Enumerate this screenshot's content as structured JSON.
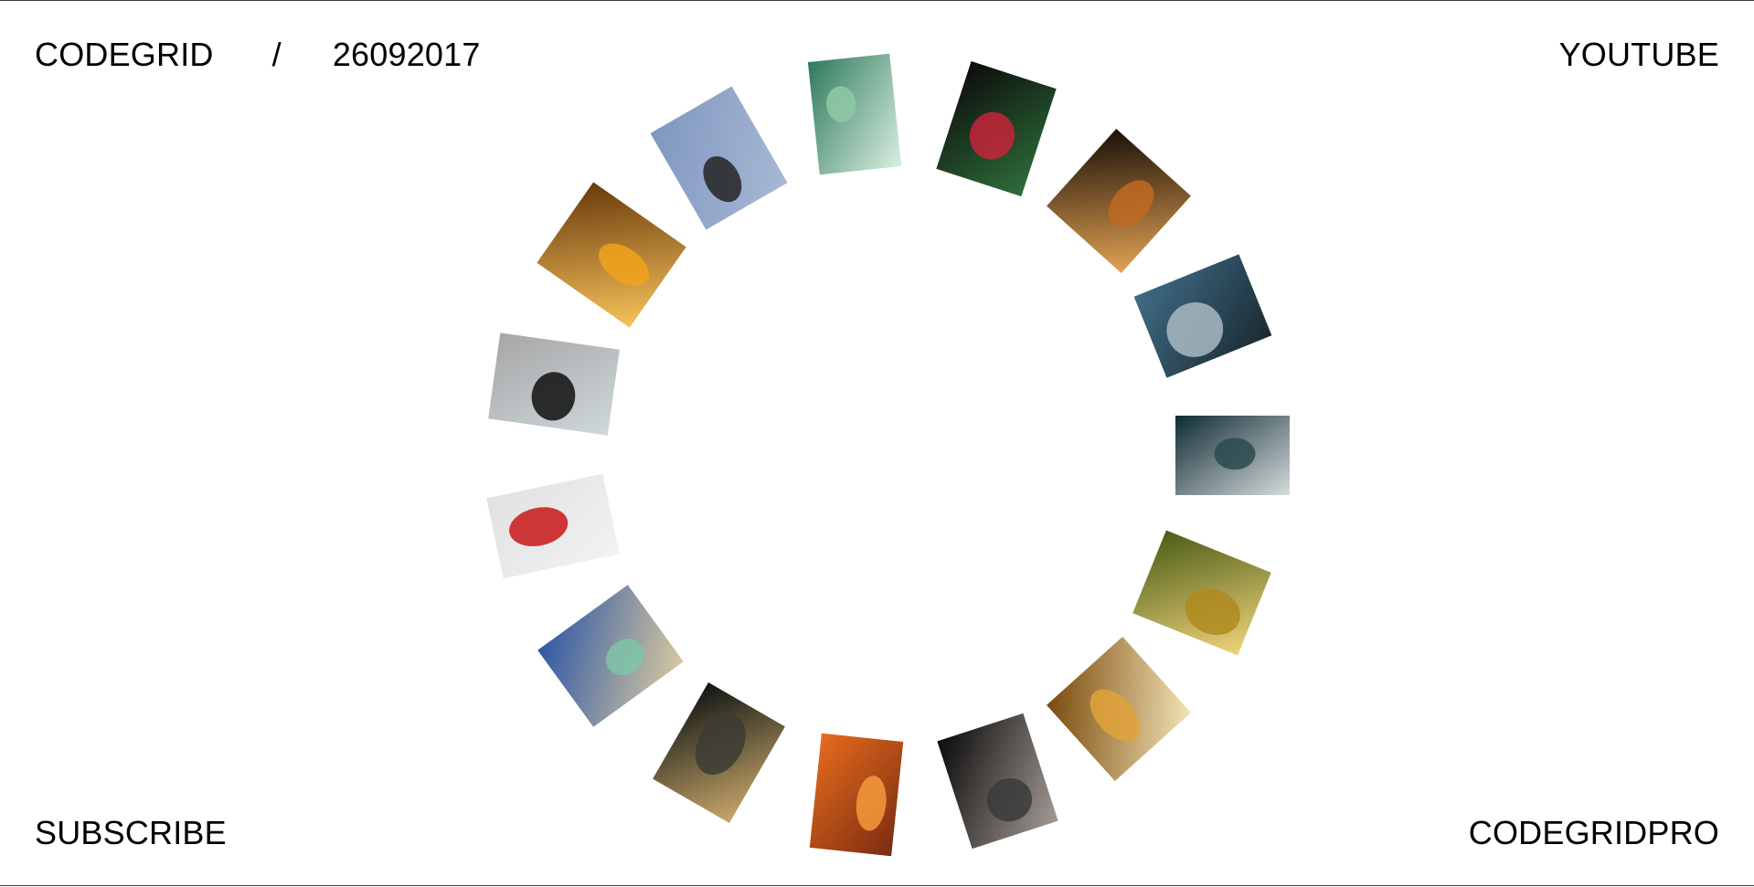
{
  "header": {
    "brand": "CODEGRID",
    "separator": "/",
    "date": "26092017",
    "youtube": "YOUTUBE"
  },
  "footer": {
    "subscribe": "SUBSCRIBE",
    "pro": "CODEGRIDPRO"
  },
  "gallery": {
    "photos": [
      {
        "name": "photo-green-figure",
        "colors": [
          "#2f7a5c",
          "#8fc9a6",
          "#d9efe0"
        ]
      },
      {
        "name": "photo-red-roses",
        "colors": [
          "#0c0c0c",
          "#c6253a",
          "#2e6e3a"
        ]
      },
      {
        "name": "photo-hat-woman",
        "colors": [
          "#1a1008",
          "#c06a22",
          "#e3a253"
        ]
      },
      {
        "name": "photo-sea-swimmer",
        "colors": [
          "#3f6c84",
          "#a9bac2",
          "#1b2a33"
        ]
      },
      {
        "name": "photo-dark-water",
        "colors": [
          "#0e2b33",
          "#2a4a4f",
          "#d7dbdc"
        ]
      },
      {
        "name": "photo-gold-bottle",
        "colors": [
          "#4b5d17",
          "#b08a1f",
          "#f0d37a"
        ]
      },
      {
        "name": "photo-golden-haze",
        "colors": [
          "#7a4a0c",
          "#e2a23a",
          "#f3e3b5"
        ]
      },
      {
        "name": "photo-dark-portrait",
        "colors": [
          "#0a0a0a",
          "#3b3b3b",
          "#a39a94"
        ]
      },
      {
        "name": "photo-hand-shadow",
        "colors": [
          "#e86a1f",
          "#f59a3c",
          "#7a2d10"
        ]
      },
      {
        "name": "photo-blonde-woman",
        "colors": [
          "#101513",
          "#3b3b36",
          "#c9a86a"
        ]
      },
      {
        "name": "photo-mint-room",
        "colors": [
          "#2f58a5",
          "#7fc4a8",
          "#d7c8a0"
        ]
      },
      {
        "name": "photo-red-circle",
        "colors": [
          "#e1e1e1",
          "#c81616",
          "#f2f2f2"
        ]
      },
      {
        "name": "photo-grey-wedge",
        "colors": [
          "#a6a6a6",
          "#0f0f0f",
          "#cfd8dc"
        ]
      },
      {
        "name": "photo-orange-city",
        "colors": [
          "#6a3a0c",
          "#f2a21a",
          "#f7c35a"
        ]
      },
      {
        "name": "photo-blue-rock",
        "colors": [
          "#7f97bf",
          "#232323",
          "#a8b8d5"
        ]
      }
    ]
  }
}
